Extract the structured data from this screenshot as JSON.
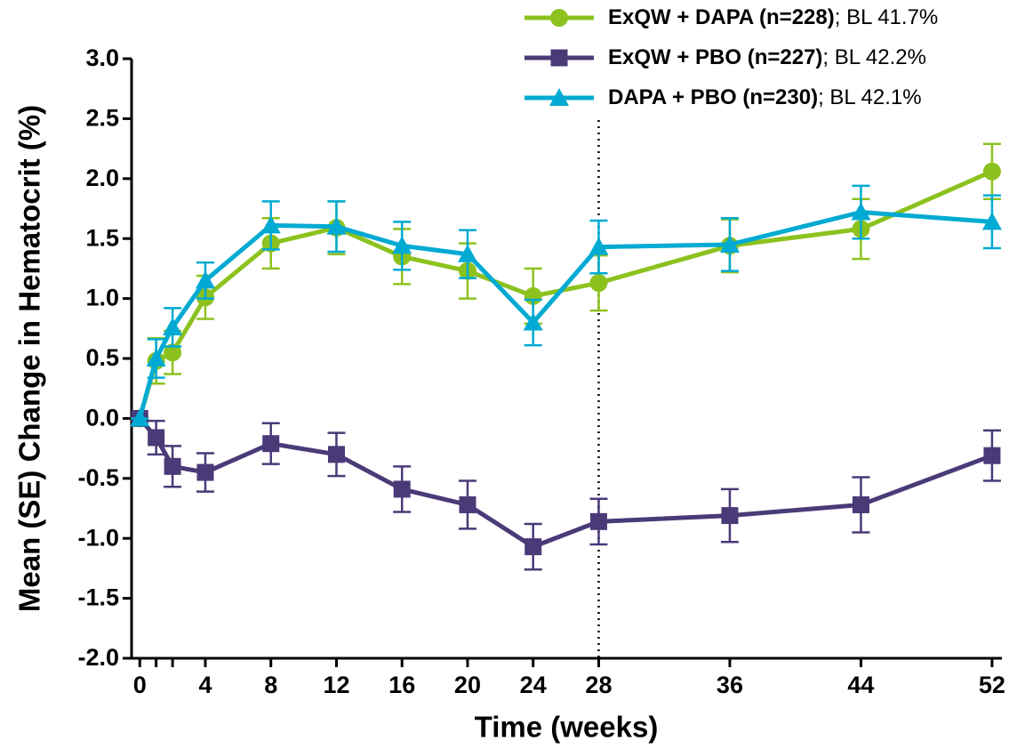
{
  "chart_data": {
    "type": "line",
    "xlabel": "Time (weeks)",
    "ylabel": "Mean (SE) Change in Hematocrit (%)",
    "x": [
      0,
      1,
      2,
      4,
      8,
      12,
      16,
      20,
      24,
      28,
      36,
      44,
      52
    ],
    "xlim": [
      -0.5,
      52.6
    ],
    "xticks": [
      0,
      4,
      8,
      12,
      16,
      20,
      24,
      28,
      36,
      44,
      52
    ],
    "xminor_ticks": [
      1,
      2
    ],
    "ylim": [
      -2,
      3
    ],
    "yticks": [
      {
        "value": 3,
        "label": "3.0"
      },
      2.5,
      {
        "value": 2,
        "label": "2.0"
      },
      1.5,
      {
        "value": 1,
        "label": "1.0"
      },
      0.5,
      {
        "value": 0,
        "label": "0.0"
      },
      -0.5,
      {
        "value": -1,
        "label": "-1.0"
      },
      -1.5,
      {
        "value": -2,
        "label": "-2.0"
      }
    ],
    "vline": 28,
    "series": [
      {
        "name": "ExQW + DAPA (n=228)",
        "label": "; BL 41.7%",
        "color": "#8cc21e",
        "marker": "circle",
        "values": [
          0,
          0.48,
          0.55,
          1.01,
          1.46,
          1.59,
          1.35,
          1.23,
          1.02,
          1.13,
          1.44,
          1.58,
          2.06
        ],
        "errors": [
          0,
          0.19,
          0.18,
          0.18,
          0.21,
          0.22,
          0.23,
          0.23,
          0.23,
          0.23,
          0.22,
          0.25,
          0.23
        ]
      },
      {
        "name": "ExQW + PBO (n=227)",
        "label": "; BL 42.2%",
        "color": "#4a3a78",
        "marker": "square",
        "values": [
          0,
          -0.16,
          -0.4,
          -0.45,
          -0.21,
          -0.3,
          -0.59,
          -0.72,
          -1.07,
          -0.86,
          -0.81,
          -0.72,
          -0.31
        ],
        "errors": [
          0,
          0.14,
          0.17,
          0.16,
          0.17,
          0.18,
          0.19,
          0.2,
          0.19,
          0.19,
          0.22,
          0.23,
          0.21
        ]
      },
      {
        "name": "DAPA + PBO (n=230)",
        "label": "; BL 42.1%",
        "color": "#00aad2",
        "marker": "triangle",
        "values": [
          0,
          0.5,
          0.76,
          1.15,
          1.61,
          1.6,
          1.44,
          1.37,
          0.8,
          1.43,
          1.45,
          1.72,
          1.64
        ],
        "errors": [
          0,
          0.16,
          0.16,
          0.15,
          0.2,
          0.21,
          0.2,
          0.2,
          0.19,
          0.22,
          0.22,
          0.22,
          0.22
        ]
      }
    ]
  }
}
